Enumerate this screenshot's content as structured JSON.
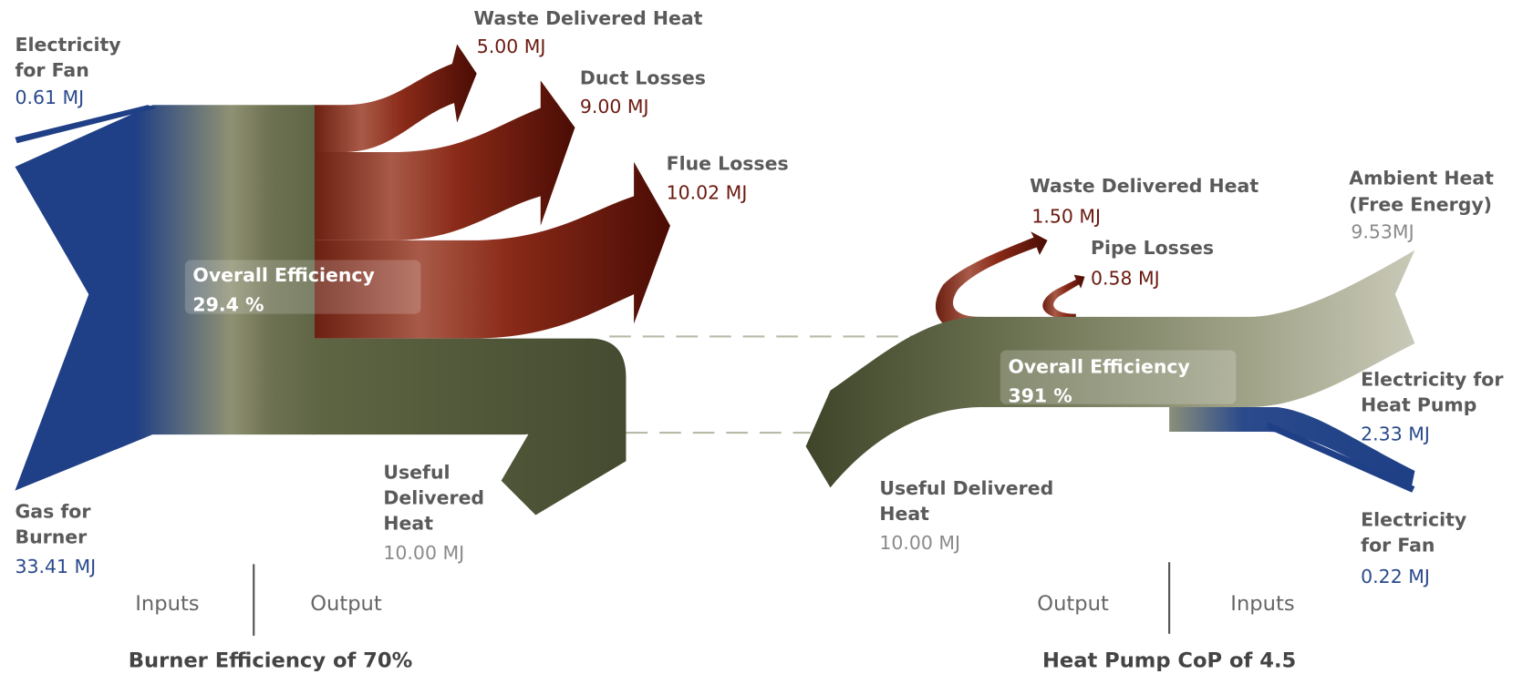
{
  "panels": [
    {
      "flows": [
        {
          "label": [
            "Electricity",
            "for Fan"
          ],
          "value": "0.61 MJ"
        },
        {
          "label": [
            "Waste Delivered Heat"
          ],
          "value": "5.00 MJ"
        },
        {
          "label": [
            "Duct Losses"
          ],
          "value": "9.00 MJ"
        },
        {
          "label": [
            "Flue Losses"
          ],
          "value": "10.02 MJ"
        },
        {
          "label": [
            "Useful",
            "Delivered",
            "Heat"
          ],
          "value": "10.00 MJ"
        },
        {
          "label": [
            "Gas for",
            "Burner"
          ],
          "value": "33.41 MJ"
        }
      ],
      "efficiency": {
        "label": "Overall Efficiency",
        "value": "29.4 %"
      },
      "columns": [
        "Inputs",
        "Output"
      ],
      "caption": "Burner Efficiency of 70%"
    },
    {
      "flows": [
        {
          "label": [
            "Waste Delivered Heat"
          ],
          "value": "1.50 MJ"
        },
        {
          "label": [
            "Pipe Losses"
          ],
          "value": "0.58 MJ"
        },
        {
          "label": [
            "Ambient Heat",
            "(Free Energy)"
          ],
          "value": "9.53MJ"
        },
        {
          "label": [
            "Electricity for",
            "Heat Pump"
          ],
          "value": "2.33 MJ"
        },
        {
          "label": [
            "Useful Delivered",
            "Heat"
          ],
          "value": "10.00 MJ"
        },
        {
          "label": [
            "Electricity",
            "for Fan"
          ],
          "value": "0.22 MJ"
        }
      ],
      "efficiency": {
        "label": "Overall Efficiency",
        "value": "391 %"
      },
      "columns": [
        "Output",
        "Inputs"
      ],
      "caption": "Heat Pump CoP of 4.5"
    }
  ]
}
